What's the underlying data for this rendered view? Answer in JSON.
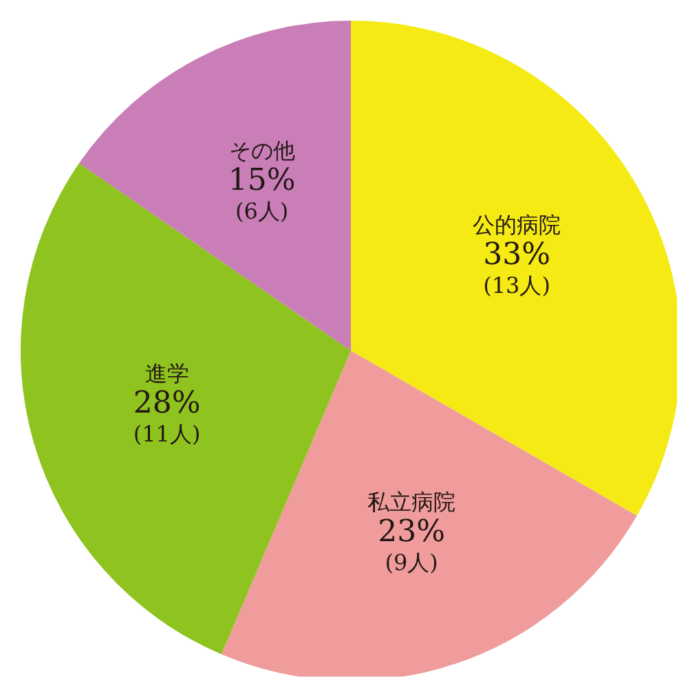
{
  "chart_data": {
    "type": "pie",
    "categories": [
      "公的病院",
      "私立病院",
      "進学",
      "その他"
    ],
    "values": [
      13,
      9,
      11,
      6
    ],
    "value_labels": [
      "33%\n(13人)",
      "23%\n(9人)",
      "28%\n(11人)",
      "15%\n(6人)"
    ],
    "colors": [
      "#f5ea14",
      "#f09c9c",
      "#8fc31f",
      "#c97eb8"
    ],
    "legend": false
  }
}
